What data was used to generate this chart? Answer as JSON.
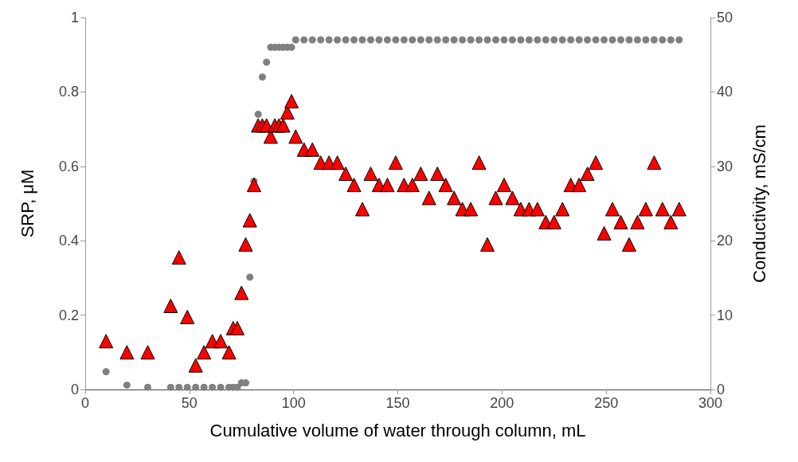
{
  "chart_data": {
    "type": "scatter",
    "xlabel": "Cumulative volume of water through column, mL",
    "ylabel": "SRP, μM",
    "y2label": "Conductivity, mS/cm",
    "xlim": [
      0,
      300
    ],
    "xticks": [
      0,
      50,
      100,
      150,
      200,
      250,
      300
    ],
    "ylim": [
      0,
      1
    ],
    "yticks": [
      0,
      0.2,
      0.4,
      0.6,
      0.8,
      1
    ],
    "y2lim": [
      0,
      50
    ],
    "y2ticks": [
      0,
      10,
      20,
      30,
      40,
      50
    ],
    "grid": false,
    "series": [
      {
        "color": "#808080",
        "marker": "circle",
        "axis": "y2",
        "x": [
          10,
          20,
          30,
          41,
          45,
          49,
          53,
          57,
          61,
          65,
          69,
          71,
          73,
          75,
          77,
          79,
          81,
          83,
          85,
          87,
          89,
          91,
          93,
          95,
          97,
          99,
          101,
          105,
          109,
          113,
          117,
          121,
          125,
          129,
          133,
          137,
          141,
          145,
          149,
          153,
          157,
          161,
          165,
          169,
          173,
          177,
          181,
          185,
          189,
          193,
          197,
          201,
          205,
          209,
          213,
          217,
          221,
          225,
          229,
          233,
          237,
          241,
          245,
          249,
          253,
          257,
          261,
          265,
          269,
          273,
          277,
          281,
          285
        ],
        "values": [
          2.4,
          0.6,
          0.3,
          0.3,
          0.3,
          0.3,
          0.3,
          0.3,
          0.3,
          0.3,
          0.3,
          0.3,
          0.3,
          0.9,
          0.9,
          15.1,
          28,
          37,
          42,
          44,
          46,
          46,
          46,
          46,
          46,
          46,
          47,
          47,
          47,
          47,
          47,
          47,
          47,
          47,
          47,
          47,
          47,
          47,
          47,
          47,
          47,
          47,
          47,
          47,
          47,
          47,
          47,
          47,
          47,
          47,
          47,
          47,
          47,
          47,
          47,
          47,
          47,
          47,
          47,
          47,
          47,
          47,
          47,
          47,
          47,
          47,
          47,
          47,
          47,
          47,
          47,
          47,
          47
        ]
      },
      {
        "color": "#ff0000",
        "marker": "triangle",
        "axis": "y",
        "x": [
          10,
          20,
          30,
          41,
          45,
          49,
          53,
          57,
          61,
          65,
          69,
          71,
          73,
          75,
          77,
          79,
          81,
          83,
          85,
          87,
          89,
          91,
          93,
          95,
          97,
          99,
          101,
          105,
          109,
          113,
          117,
          121,
          125,
          129,
          133,
          137,
          141,
          145,
          149,
          153,
          157,
          161,
          165,
          169,
          173,
          177,
          181,
          185,
          189,
          193,
          197,
          201,
          205,
          209,
          213,
          217,
          221,
          225,
          229,
          233,
          237,
          241,
          245,
          249,
          253,
          257,
          261,
          265,
          269,
          273,
          277,
          281,
          285
        ],
        "values": [
          0.13,
          0.1,
          0.1,
          0.225,
          0.355,
          0.195,
          0.065,
          0.1,
          0.13,
          0.13,
          0.1,
          0.165,
          0.165,
          0.26,
          0.39,
          0.455,
          0.55,
          0.71,
          0.71,
          0.71,
          0.68,
          0.71,
          0.71,
          0.71,
          0.745,
          0.775,
          0.68,
          0.645,
          0.645,
          0.61,
          0.61,
          0.61,
          0.58,
          0.55,
          0.485,
          0.58,
          0.55,
          0.55,
          0.61,
          0.55,
          0.55,
          0.58,
          0.515,
          0.58,
          0.55,
          0.515,
          0.485,
          0.485,
          0.61,
          0.39,
          0.515,
          0.55,
          0.515,
          0.485,
          0.485,
          0.485,
          0.45,
          0.45,
          0.485,
          0.55,
          0.55,
          0.58,
          0.61,
          0.42,
          0.485,
          0.45,
          0.39,
          0.45,
          0.485,
          0.61,
          0.485,
          0.45,
          0.485
        ]
      }
    ]
  }
}
